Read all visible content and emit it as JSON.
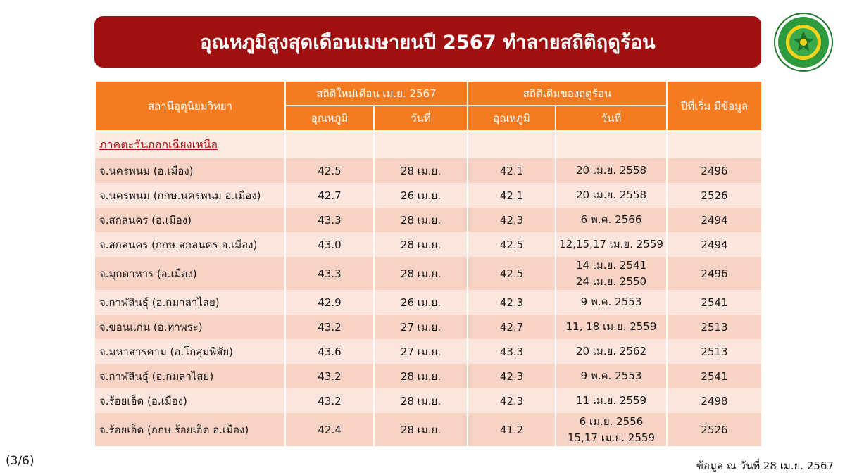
{
  "title": "อุณหภูมิสูงสุดเดือนเมษายนปี 2567 ทำลายสถิติฤดูร้อน",
  "logo": {
    "icon": "meteorological-department-seal"
  },
  "table": {
    "headers": {
      "station": "สถานีอุตุนิยมวิทยา",
      "new_record": "สถิติใหม่เดือน เม.ย. 2567",
      "old_record": "สถิติเดิมของฤดูร้อน",
      "start_year": "ปีที่เริ่ม มีข้อมูล",
      "temperature": "อุณหภูมิ",
      "date": "วันที่"
    },
    "region": "ภาคตะวันออกเฉียงเหนือ",
    "rows": [
      {
        "station": "จ.นครพนม (อ.เมือง)",
        "new_temp": "42.5",
        "new_date": "28 เม.ย.",
        "old_temp": "42.1",
        "old_date": [
          "20 เม.ย. 2558"
        ],
        "start_year": "2496"
      },
      {
        "station": "จ.นครพนม (กกษ.นครพนม อ.เมือง)",
        "new_temp": "42.7",
        "new_date": "26 เม.ย.",
        "old_temp": "42.1",
        "old_date": [
          "20 เม.ย. 2558"
        ],
        "start_year": "2526"
      },
      {
        "station": "จ.สกลนคร (อ.เมือง)",
        "new_temp": "43.3",
        "new_date": "28 เม.ย.",
        "old_temp": "42.3",
        "old_date": [
          "6 พ.ค. 2566"
        ],
        "start_year": "2494"
      },
      {
        "station": "จ.สกลนคร (กกษ.สกลนคร อ.เมือง)",
        "new_temp": "43.0",
        "new_date": "28 เม.ย.",
        "old_temp": "42.5",
        "old_date": [
          "12,15,17 เม.ย. 2559"
        ],
        "start_year": "2494"
      },
      {
        "station": "จ.มุกดาหาร (อ.เมือง)",
        "new_temp": "43.3",
        "new_date": "28 เม.ย.",
        "old_temp": "42.5",
        "old_date": [
          "14 เม.ย. 2541",
          "24 เม.ย. 2550"
        ],
        "start_year": "2496"
      },
      {
        "station": "จ.กาฬสินธุ์ (อ.กมาลาไสย)",
        "new_temp": "42.9",
        "new_date": "26 เม.ย.",
        "old_temp": "42.3",
        "old_date": [
          "9 พ.ค. 2553"
        ],
        "start_year": "2541"
      },
      {
        "station": "จ.ขอนแก่น (อ.ท่าพระ)",
        "new_temp": "43.2",
        "new_date": "27 เม.ย.",
        "old_temp": "42.7",
        "old_date": [
          "11, 18 เม.ย. 2559"
        ],
        "start_year": "2513"
      },
      {
        "station": "จ.มหาสารคาม (อ.โกสุมพิสัย)",
        "new_temp": "43.6",
        "new_date": "27 เม.ย.",
        "old_temp": "43.3",
        "old_date": [
          "20 เม.ย. 2562"
        ],
        "start_year": "2513"
      },
      {
        "station": "จ.กาฬสินธุ์ (อ.กมลาไสย)",
        "new_temp": "43.2",
        "new_date": "28 เม.ย.",
        "old_temp": "42.3",
        "old_date": [
          "9 พ.ค. 2553"
        ],
        "start_year": "2541"
      },
      {
        "station": "จ.ร้อยเอ็ด (อ.เมือง)",
        "new_temp": "43.2",
        "new_date": "28 เม.ย.",
        "old_temp": "42.3",
        "old_date": [
          "11 เม.ย. 2559"
        ],
        "start_year": "2498"
      },
      {
        "station": "จ.ร้อยเอ็ด (กกษ.ร้อยเอ็ด อ.เมือง)",
        "new_temp": "42.4",
        "new_date": "28 เม.ย.",
        "old_temp": "41.2",
        "old_date": [
          "6 เม.ย. 2556",
          "15,17 เม.ย. 2559"
        ],
        "start_year": "2526"
      }
    ]
  },
  "footer": {
    "page": "(3/6)",
    "note": "ข้อมูล ณ วันที่ 28 เม.ย. 2567"
  },
  "colors": {
    "title_bg": "#a01010",
    "header_bg": "#f47b20",
    "row_dark": "#f6d3c4",
    "row_light": "#fbe5dc",
    "region_text": "#b01010"
  }
}
